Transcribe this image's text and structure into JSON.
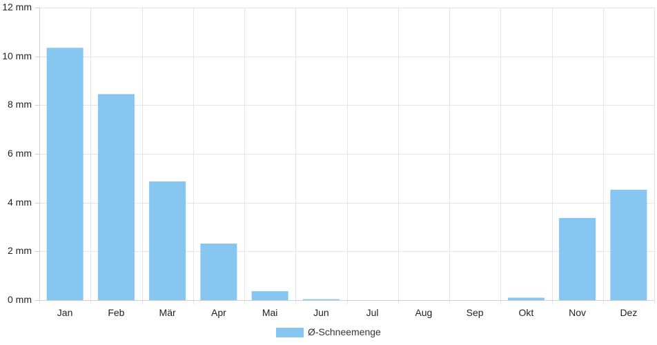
{
  "chart_data": {
    "type": "bar",
    "categories": [
      "Jan",
      "Feb",
      "Mär",
      "Apr",
      "Mai",
      "Jun",
      "Jul",
      "Aug",
      "Sep",
      "Okt",
      "Nov",
      "Dez"
    ],
    "series": [
      {
        "name": "Ø-Schneemenge",
        "values": [
          10.35,
          8.45,
          4.87,
          2.32,
          0.37,
          0.04,
          0,
          0,
          0,
          0.1,
          3.37,
          4.53
        ]
      }
    ],
    "ylim": [
      0,
      12
    ],
    "yticks": [
      0,
      2,
      4,
      6,
      8,
      10,
      12
    ],
    "y_tick_suffix": " mm",
    "grid": true,
    "legend_position": "bottom-center",
    "colors": {
      "bar": "#88c6f2",
      "grid": "#e4e4e4",
      "axis": "#cfcfcf"
    }
  }
}
